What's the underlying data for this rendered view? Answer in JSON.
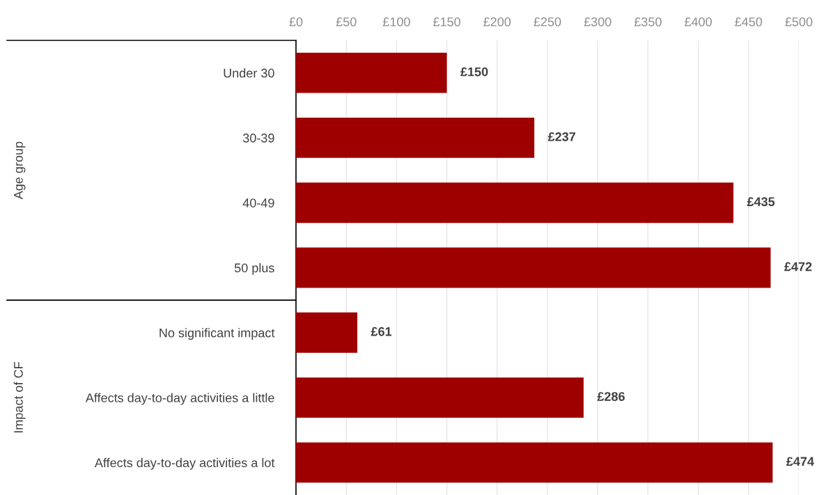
{
  "chart_data": {
    "type": "bar",
    "orientation": "horizontal",
    "categories": [
      "Under 30",
      "30-39",
      "40-49",
      "50 plus",
      "No significant impact",
      "Affects day-to-day activities a little",
      "Affects day-to-day activities a lot"
    ],
    "values": [
      150,
      237,
      435,
      472,
      61,
      286,
      474
    ],
    "value_labels": [
      "£150",
      "£237",
      "£435",
      "£472",
      "£61",
      "£286",
      "£474"
    ],
    "color": "#9e0000",
    "xlim": [
      0,
      500
    ],
    "xticks": [
      {
        "value": 0,
        "label": "£0"
      },
      {
        "value": 50,
        "label": "£50"
      },
      {
        "value": 100,
        "label": "£100"
      },
      {
        "value": 150,
        "label": "£150"
      },
      {
        "value": 200,
        "label": "£200"
      },
      {
        "value": 250,
        "label": "£250"
      },
      {
        "value": 300,
        "label": "£300"
      },
      {
        "value": 350,
        "label": "£350"
      },
      {
        "value": 400,
        "label": "£400"
      },
      {
        "value": 450,
        "label": "£450"
      },
      {
        "value": 500,
        "label": "£500"
      }
    ],
    "grid": "x",
    "annotations": [
      "Age group",
      "Impact of CF"
    ]
  }
}
